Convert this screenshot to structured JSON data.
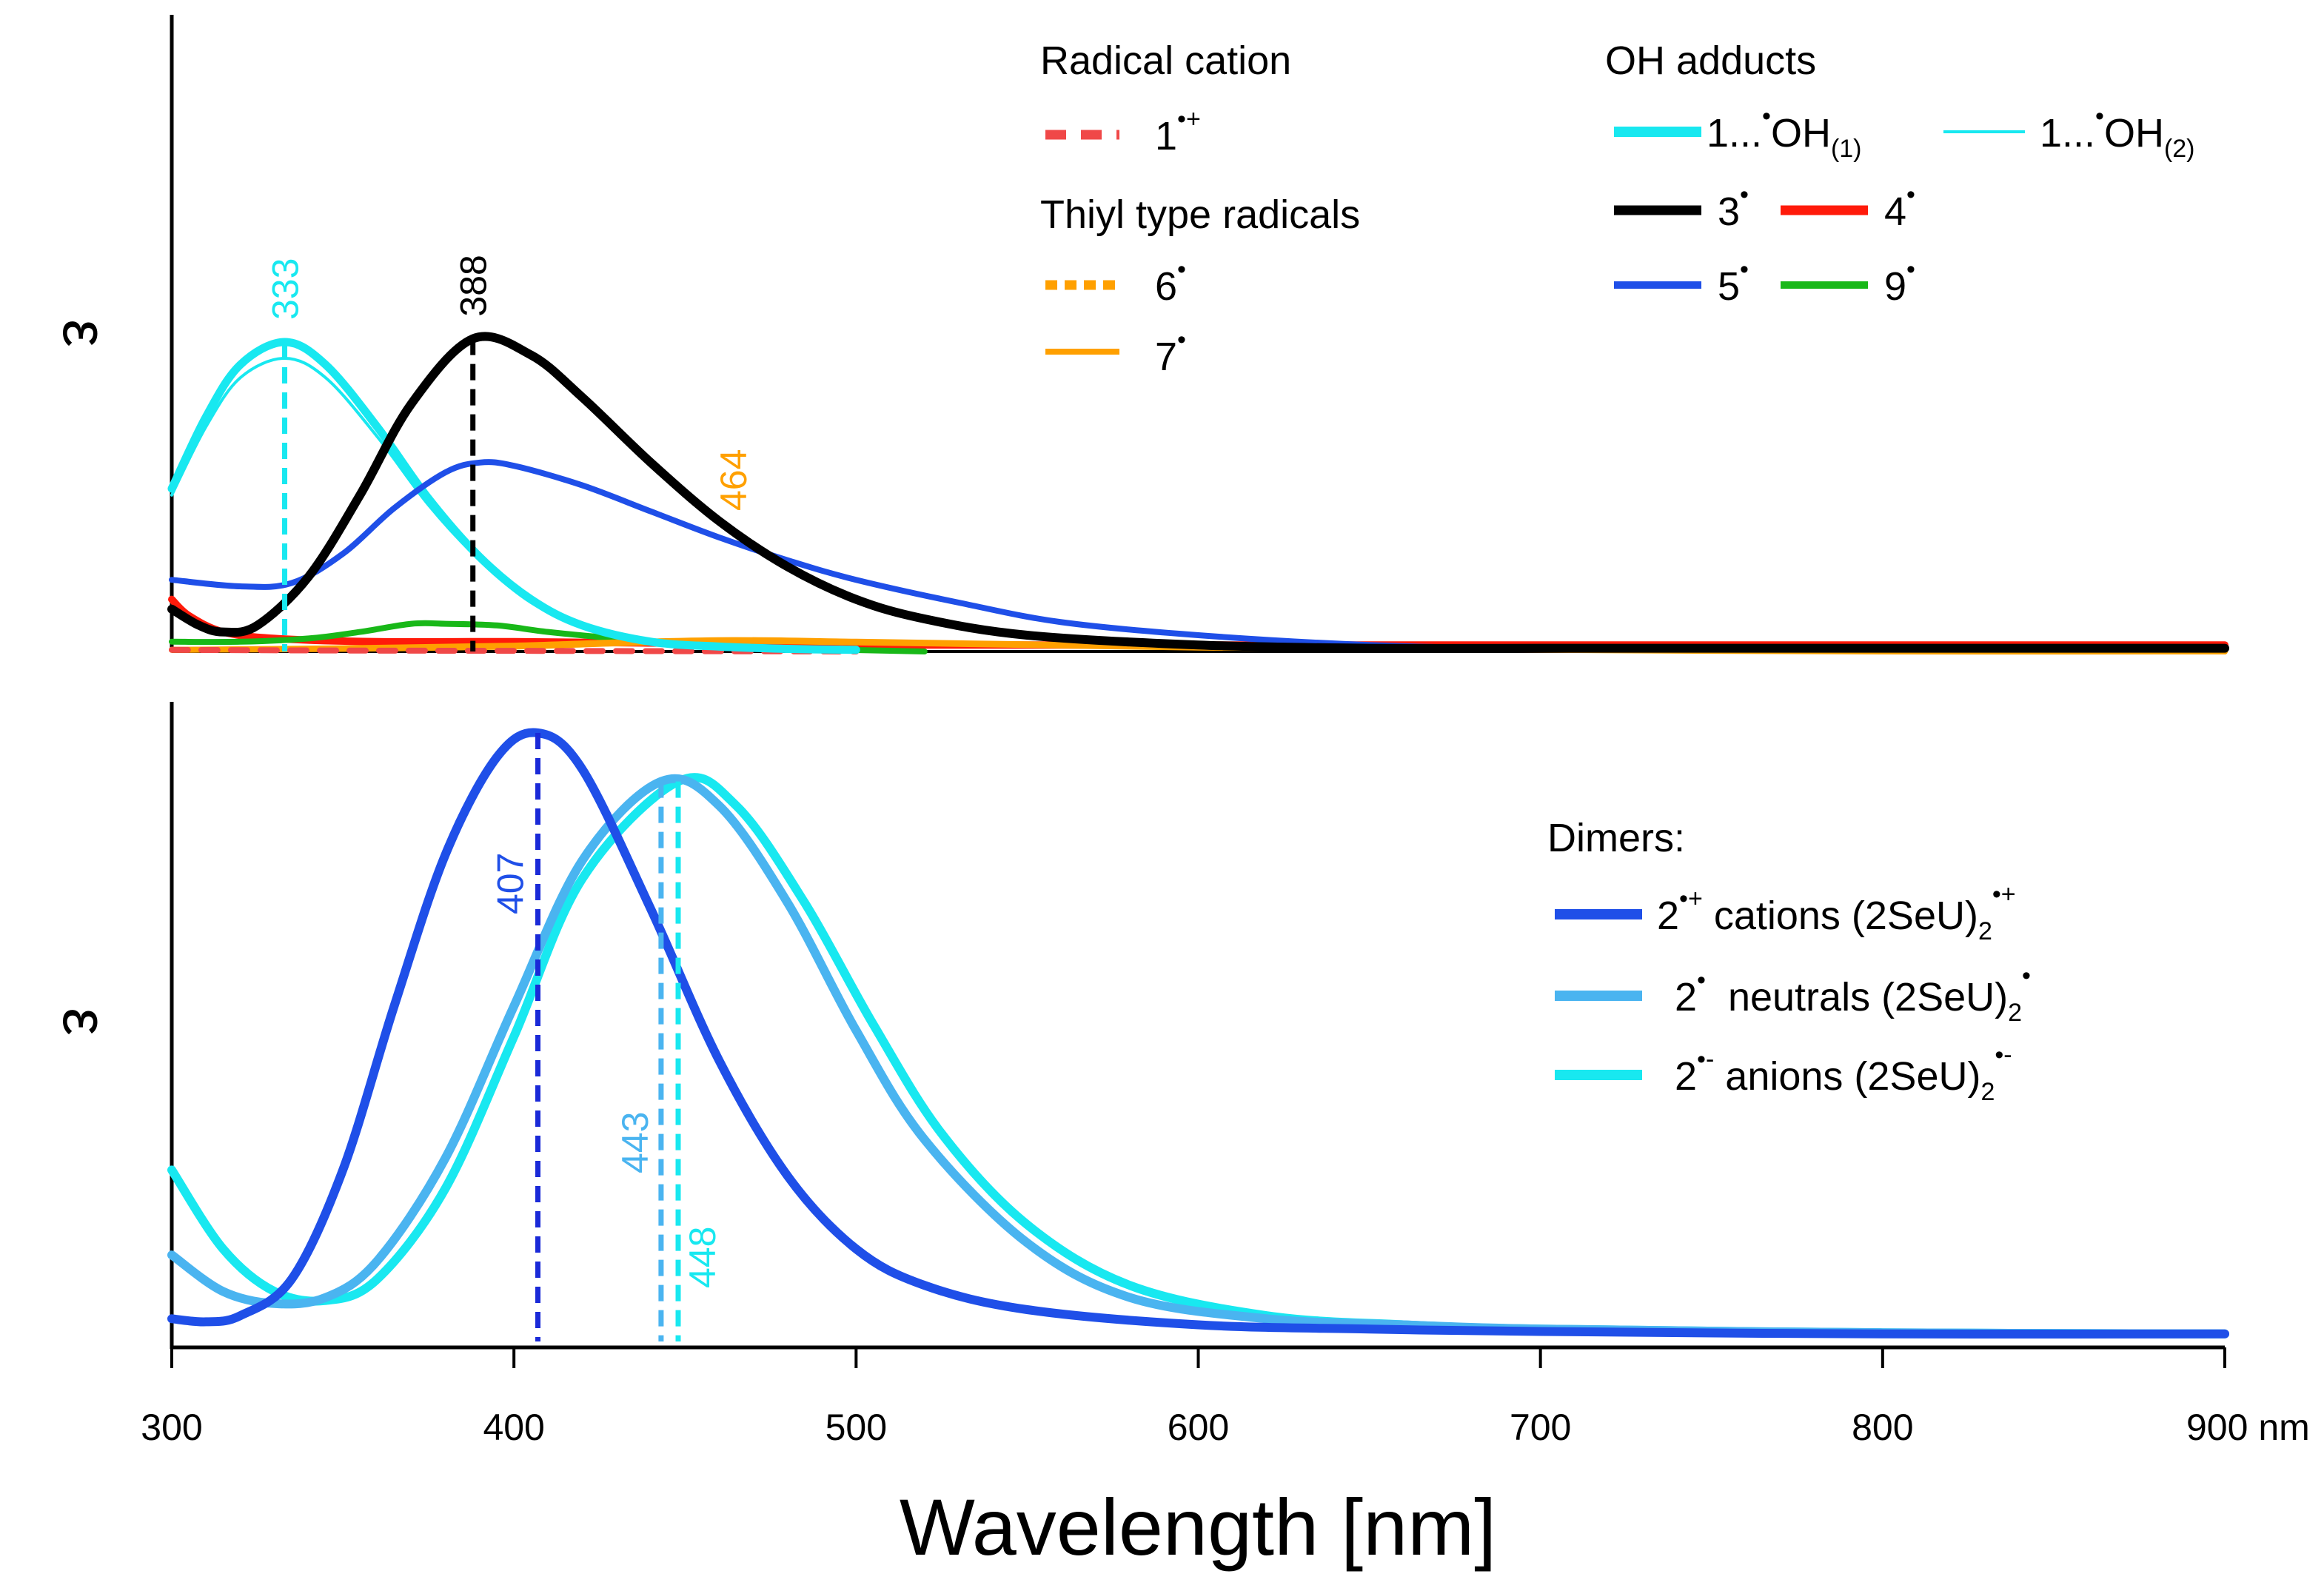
{
  "chart_data": [
    {
      "panel": "top",
      "type": "line",
      "ylabel": "ε",
      "x_range": [
        300,
        900
      ],
      "y_range": [
        0,
        1.05
      ],
      "legend_groups": [
        {
          "heading": "Radical cation",
          "entries": [
            {
              "label": "1",
              "superscript": "•+",
              "color": "#f04848",
              "style": "dashed"
            }
          ]
        },
        {
          "heading": "Thiyl type radicals",
          "entries": [
            {
              "label": "6",
              "superscript": "•",
              "color": "#ffa000",
              "style": "dotted"
            },
            {
              "label": "7",
              "superscript": "•",
              "color": "#ffa000",
              "style": "solid"
            }
          ]
        },
        {
          "heading": "OH adducts",
          "entries": [
            {
              "label": "1...",
              "superscript": "•",
              "suffix": "OH",
              "subscript": "(1)",
              "color": "#18e8f0",
              "style": "thick"
            },
            {
              "label": "1...",
              "superscript": "•",
              "suffix": "OH",
              "subscript": "(2)",
              "color": "#18e8f0",
              "style": "thin"
            },
            {
              "label": "3",
              "superscript": "•",
              "color": "#000000",
              "style": "solid"
            },
            {
              "label": "4",
              "superscript": "•",
              "color": "#ff1a0a",
              "style": "solid"
            },
            {
              "label": "5",
              "superscript": "•",
              "color": "#1f4fe8",
              "style": "solid"
            },
            {
              "label": "9",
              "superscript": "•",
              "color": "#18b818",
              "style": "solid"
            }
          ]
        }
      ],
      "series": [
        {
          "name": "1...•OH(1)",
          "color": "#18e8f0",
          "x": [
            300,
            310,
            320,
            333,
            345,
            360,
            375,
            390,
            405,
            420,
            440,
            460,
            480,
            500
          ],
          "y": [
            0.5,
            0.72,
            0.88,
            0.95,
            0.88,
            0.69,
            0.47,
            0.29,
            0.16,
            0.08,
            0.03,
            0.015,
            0.008,
            0.005
          ]
        },
        {
          "name": "1...•OH(2)",
          "color": "#18e8f0",
          "x": [
            300,
            310,
            320,
            333,
            345,
            360,
            375,
            390,
            405,
            420,
            440,
            460,
            480,
            500
          ],
          "y": [
            0.48,
            0.69,
            0.84,
            0.9,
            0.84,
            0.66,
            0.45,
            0.28,
            0.15,
            0.08,
            0.03,
            0.015,
            0.008,
            0.005
          ]
        },
        {
          "name": "3•",
          "color": "#000000",
          "x": [
            300,
            308,
            315,
            325,
            340,
            355,
            370,
            388,
            405,
            420,
            440,
            460,
            480,
            500,
            520,
            550,
            600,
            650,
            700,
            800,
            900
          ],
          "y": [
            0.13,
            0.08,
            0.06,
            0.08,
            0.23,
            0.48,
            0.76,
            0.96,
            0.91,
            0.78,
            0.58,
            0.4,
            0.26,
            0.16,
            0.1,
            0.05,
            0.02,
            0.01,
            0.01,
            0.01,
            0.01
          ]
        },
        {
          "name": "5•",
          "color": "#1f4fe8",
          "x": [
            300,
            320,
            335,
            350,
            365,
            380,
            390,
            400,
            420,
            440,
            460,
            480,
            500,
            530,
            560,
            600,
            650,
            700,
            800,
            900
          ],
          "y": [
            0.22,
            0.2,
            0.21,
            0.3,
            0.44,
            0.55,
            0.58,
            0.57,
            0.51,
            0.43,
            0.35,
            0.28,
            0.22,
            0.15,
            0.09,
            0.05,
            0.02,
            0.01,
            0.01,
            0.01
          ]
        },
        {
          "name": "4•",
          "color": "#ff1a0a",
          "x": [
            300,
            305,
            315,
            330,
            360,
            400,
            450,
            500,
            600,
            700,
            800,
            900
          ],
          "y": [
            0.16,
            0.11,
            0.06,
            0.04,
            0.03,
            0.03,
            0.025,
            0.02,
            0.02,
            0.02,
            0.02,
            0.02
          ]
        },
        {
          "name": "9•",
          "color": "#18b818",
          "x": [
            300,
            320,
            340,
            355,
            370,
            380,
            395,
            410,
            430,
            450,
            480,
            520
          ],
          "y": [
            0.03,
            0.03,
            0.04,
            0.06,
            0.085,
            0.085,
            0.08,
            0.06,
            0.04,
            0.025,
            0.01,
            0.0
          ]
        },
        {
          "name": "6•",
          "color": "#ffa000",
          "x": [
            300,
            350,
            400,
            430,
            464,
            500,
            550,
            600,
            700,
            800,
            900
          ],
          "y": [
            0.005,
            0.008,
            0.015,
            0.025,
            0.032,
            0.028,
            0.02,
            0.012,
            0.005,
            0.0,
            0.0
          ]
        },
        {
          "name": "7•",
          "color": "#ffa000",
          "x": [
            300,
            350,
            400,
            430,
            464,
            500,
            550,
            600,
            700,
            800,
            900
          ],
          "y": [
            0.005,
            0.01,
            0.018,
            0.028,
            0.035,
            0.03,
            0.022,
            0.014,
            0.006,
            0.002,
            0.0
          ]
        },
        {
          "name": "1•+",
          "color": "#f04848",
          "dash": true,
          "x": [
            300,
            350,
            400,
            450,
            500
          ],
          "y": [
            0.005,
            0.003,
            0.002,
            0.001,
            0.0
          ]
        }
      ],
      "peaks": [
        {
          "x": 333,
          "y": 0.95,
          "label": "333",
          "color": "#18e8f0",
          "label_color": "#18e8f0"
        },
        {
          "x": 388,
          "y": 0.96,
          "label": "388",
          "color": "#000000",
          "label_color": "#000000"
        },
        {
          "x": 464,
          "label": "464",
          "label_color": "#ffa000"
        }
      ]
    },
    {
      "panel": "bottom",
      "type": "line",
      "ylabel": "ε",
      "x_range": [
        300,
        900
      ],
      "y_range": [
        0,
        1.05
      ],
      "legend_heading": "Dimers:",
      "legend_entries": [
        {
          "label": "2",
          "superscript": "•+",
          "rest": " cations (2SeU)",
          "subscript": "2",
          "superscript2": "•+",
          "color": "#1f4fe8"
        },
        {
          "label": "2",
          "superscript": "•",
          "rest": "  neutrals (2SeU)",
          "subscript": "2",
          "superscript2": "•",
          "color": "#4ab4f0"
        },
        {
          "label": "2",
          "superscript": "•-",
          "rest": " anions (2SeU)",
          "subscript": "2",
          "superscript2": "•-",
          "color": "#18e8f0"
        }
      ],
      "series": [
        {
          "name": "2•+ cations (2SeU)2•+",
          "color": "#1f4fe8",
          "x": [
            300,
            310,
            320,
            335,
            350,
            365,
            380,
            395,
            407,
            420,
            440,
            460,
            480,
            500,
            520,
            550,
            600,
            650,
            700,
            800,
            900
          ],
          "y": [
            0.035,
            0.03,
            0.04,
            0.1,
            0.28,
            0.55,
            0.8,
            0.96,
            1.0,
            0.94,
            0.71,
            0.46,
            0.27,
            0.15,
            0.09,
            0.05,
            0.025,
            0.018,
            0.014,
            0.01,
            0.01
          ]
        },
        {
          "name": "2• neutrals (2SeU)2•",
          "color": "#4ab4f0",
          "x": [
            300,
            315,
            330,
            345,
            360,
            380,
            400,
            420,
            443,
            460,
            480,
            500,
            520,
            550,
            580,
            620,
            660,
            700,
            800,
            900
          ],
          "y": [
            0.14,
            0.08,
            0.06,
            0.07,
            0.13,
            0.3,
            0.55,
            0.79,
            0.92,
            0.88,
            0.72,
            0.51,
            0.33,
            0.16,
            0.07,
            0.035,
            0.025,
            0.018,
            0.012,
            0.01
          ]
        },
        {
          "name": "2•- anions (2SeU)2•-",
          "color": "#18e8f0",
          "x": [
            300,
            315,
            330,
            345,
            360,
            380,
            400,
            420,
            448,
            465,
            485,
            505,
            525,
            550,
            580,
            620,
            660,
            700,
            800,
            900
          ],
          "y": [
            0.28,
            0.15,
            0.08,
            0.065,
            0.1,
            0.25,
            0.5,
            0.76,
            0.92,
            0.88,
            0.72,
            0.52,
            0.34,
            0.19,
            0.09,
            0.04,
            0.025,
            0.018,
            0.012,
            0.01
          ]
        }
      ],
      "peaks": [
        {
          "x": 407,
          "y": 1.0,
          "label": "407",
          "color": "#1a2ad8",
          "label_color": "#1f4fe8"
        },
        {
          "x": 443,
          "y": 0.92,
          "label": "443",
          "color": "#4ab4f0",
          "label_color": "#4ab4f0"
        },
        {
          "x": 448,
          "y": 0.92,
          "label": "448",
          "color": "#18e8f0",
          "label_color": "#18e8f0"
        }
      ]
    }
  ],
  "x_axis": {
    "ticks": [
      300,
      400,
      500,
      600,
      700,
      800,
      900
    ],
    "tick_labels": [
      "300",
      "400",
      "500",
      "600",
      "700",
      "800",
      "900 nm"
    ],
    "title": "Wavelength [nm]"
  }
}
